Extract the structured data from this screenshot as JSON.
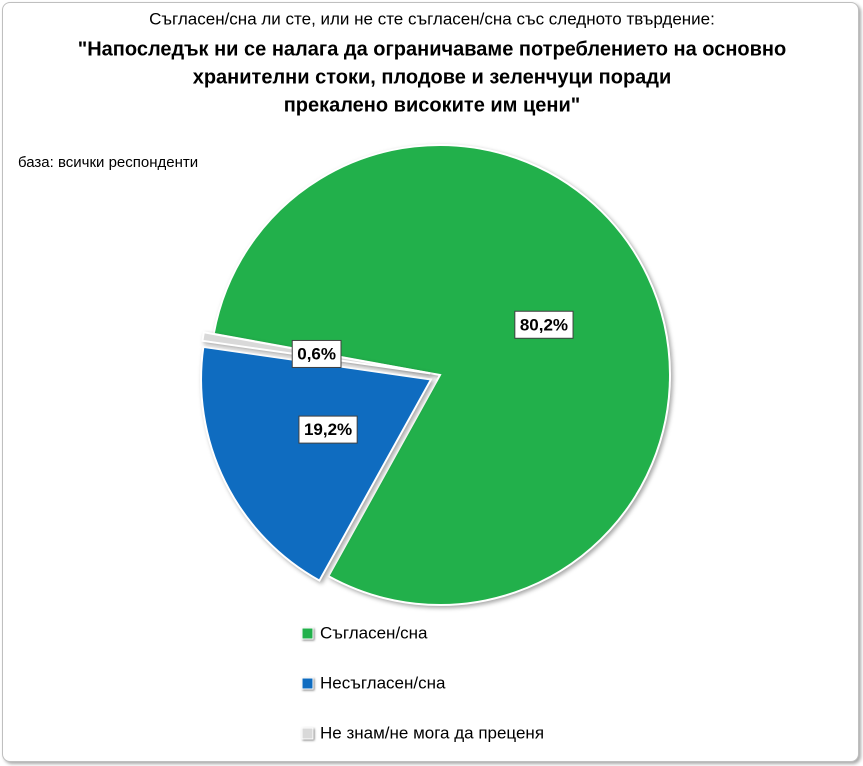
{
  "chart_data": {
    "type": "pie",
    "subtitle": "Съгласен/сна ли сте, или не сте съгласен/сна със следното твърдение:",
    "title": [
      "\"Напоследък ни се налага да ограничаваме потреблението на основно",
      "хранителни стоки, плодове и зеленчуци поради",
      "прекалено високите им цени\""
    ],
    "note": "база: всички респонденти",
    "categories": [
      "Съгласен/сна",
      "Несъгласен/сна",
      "Не знам/не мога да преценя"
    ],
    "values": [
      80.2,
      19.2,
      0.6
    ],
    "value_labels": [
      "80,2%",
      "19,2%",
      "0,6%"
    ],
    "colors": [
      "#22b04b",
      "#0f6cc0",
      "#d9d9d9"
    ],
    "legend": "bottom"
  }
}
